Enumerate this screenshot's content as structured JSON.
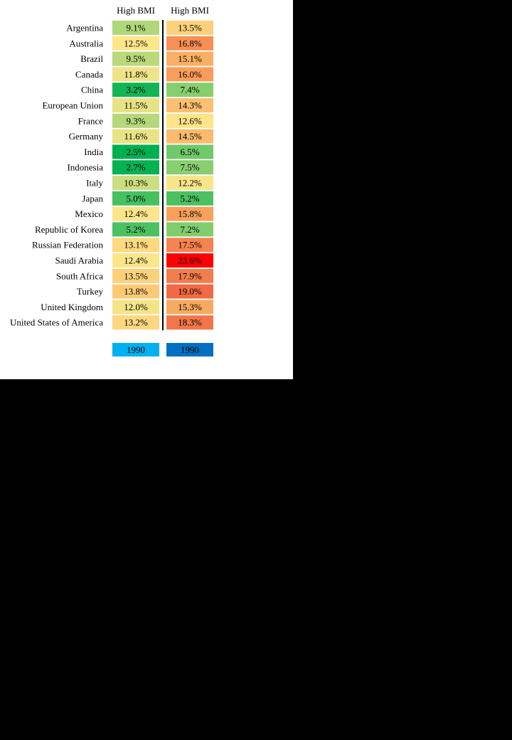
{
  "chart_data": {
    "type": "heatmap",
    "columns": [
      {
        "header": "High BMI",
        "legend_label": "1990",
        "legend_color": "#00B0F0"
      },
      {
        "header": "High BMI",
        "legend_label": "1990",
        "legend_color": "#0070C0"
      }
    ],
    "rows": [
      {
        "label": "Argentina",
        "values": [
          9.1,
          13.5
        ],
        "display": [
          "9.1%",
          "13.5%"
        ]
      },
      {
        "label": "Australia",
        "values": [
          12.5,
          16.8
        ],
        "display": [
          "12.5%",
          "16.8%"
        ]
      },
      {
        "label": "Brazil",
        "values": [
          9.5,
          15.1
        ],
        "display": [
          "9.5%",
          "15.1%"
        ]
      },
      {
        "label": "Canada",
        "values": [
          11.8,
          16.0
        ],
        "display": [
          "11.8%",
          "16.0%"
        ]
      },
      {
        "label": "China",
        "values": [
          3.2,
          7.4
        ],
        "display": [
          "3.2%",
          "7.4%"
        ]
      },
      {
        "label": "European Union",
        "values": [
          11.5,
          14.3
        ],
        "display": [
          "11.5%",
          "14.3%"
        ]
      },
      {
        "label": "France",
        "values": [
          9.3,
          12.6
        ],
        "display": [
          "9.3%",
          "12.6%"
        ]
      },
      {
        "label": "Germany",
        "values": [
          11.6,
          14.5
        ],
        "display": [
          "11.6%",
          "14.5%"
        ]
      },
      {
        "label": "India",
        "values": [
          2.5,
          6.5
        ],
        "display": [
          "2.5%",
          "6.5%"
        ]
      },
      {
        "label": "Indonesia",
        "values": [
          2.7,
          7.5
        ],
        "display": [
          "2.7%",
          "7.5%"
        ]
      },
      {
        "label": "Italy",
        "values": [
          10.3,
          12.2
        ],
        "display": [
          "10.3%",
          "12.2%"
        ]
      },
      {
        "label": "Japan",
        "values": [
          5.0,
          5.2
        ],
        "display": [
          "5.0%",
          "5.2%"
        ]
      },
      {
        "label": "Mexico",
        "values": [
          12.4,
          15.8
        ],
        "display": [
          "12.4%",
          "15.8%"
        ]
      },
      {
        "label": "Republic of Korea",
        "values": [
          5.2,
          7.2
        ],
        "display": [
          "5.2%",
          "7.2%"
        ]
      },
      {
        "label": "Russian Federation",
        "values": [
          13.1,
          17.5
        ],
        "display": [
          "13.1%",
          "17.5%"
        ]
      },
      {
        "label": "Saudi Arabia",
        "values": [
          12.4,
          23.6
        ],
        "display": [
          "12.4%",
          "23.6%"
        ]
      },
      {
        "label": "South Africa",
        "values": [
          13.5,
          17.9
        ],
        "display": [
          "13.5%",
          "17.9%"
        ]
      },
      {
        "label": "Turkey",
        "values": [
          13.8,
          19.0
        ],
        "display": [
          "13.8%",
          "19.0%"
        ]
      },
      {
        "label": "United Kingdom",
        "values": [
          12.0,
          15.3
        ],
        "display": [
          "12.0%",
          "15.3%"
        ]
      },
      {
        "label": "United States of America",
        "values": [
          13.2,
          18.3
        ],
        "display": [
          "13.2%",
          "18.3%"
        ]
      }
    ],
    "color_scale": {
      "stops": [
        {
          "value": 2.5,
          "color": "#00B050"
        },
        {
          "value": 6.5,
          "color": "#70C96A"
        },
        {
          "value": 10.0,
          "color": "#C6DC7E"
        },
        {
          "value": 12.5,
          "color": "#FFE68A"
        },
        {
          "value": 15.5,
          "color": "#F9A65E"
        },
        {
          "value": 19.0,
          "color": "#F26A45"
        },
        {
          "value": 23.6,
          "color": "#FF0000"
        }
      ]
    },
    "divider": "between-columns",
    "grid": false,
    "legend_position": "bottom"
  }
}
